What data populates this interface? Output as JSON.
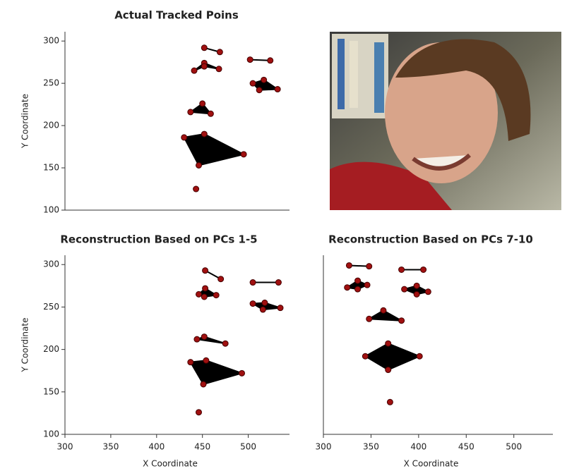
{
  "chart_data": [
    {
      "type": "scatter",
      "title": "Actual Tracked Poins",
      "ylabel": "Y Coordinate",
      "xlim": [
        300,
        545
      ],
      "ylim": [
        100,
        311
      ],
      "yticks": [
        100,
        150,
        200,
        250,
        300
      ],
      "color": "#a01010",
      "shape_color": "#000000",
      "series": [
        {
          "shape": "line",
          "x": [
            452,
            469
          ],
          "y": [
            292,
            287
          ]
        },
        {
          "shape": "polygon",
          "x": [
            441,
            452,
            468,
            452
          ],
          "y": [
            265,
            274,
            267,
            270
          ]
        },
        {
          "shape": "line",
          "x": [
            502,
            524
          ],
          "y": [
            278,
            277
          ]
        },
        {
          "shape": "polygon",
          "x": [
            505,
            517,
            532,
            512
          ],
          "y": [
            250,
            254,
            243,
            242
          ]
        },
        {
          "shape": "polygon",
          "x": [
            437,
            450,
            459
          ],
          "y": [
            216,
            226,
            214
          ]
        },
        {
          "shape": "polygon",
          "x": [
            430,
            452,
            495,
            446
          ],
          "y": [
            186,
            190,
            166,
            153
          ]
        },
        {
          "x": [
            443
          ],
          "y": [
            125
          ]
        }
      ]
    },
    {
      "type": "scatter",
      "title": "Reconstruction Based on PCs 1-5",
      "xlabel": "X Coordinate",
      "ylabel": "Y Coordinate",
      "xlim": [
        300,
        545
      ],
      "ylim": [
        100,
        311
      ],
      "xticks": [
        300,
        350,
        400,
        450,
        500
      ],
      "yticks": [
        100,
        150,
        200,
        250,
        300
      ],
      "color": "#a01010",
      "shape_color": "#000000",
      "series": [
        {
          "shape": "line",
          "x": [
            453,
            470
          ],
          "y": [
            293,
            283
          ]
        },
        {
          "shape": "polygon",
          "x": [
            446,
            453,
            465,
            452
          ],
          "y": [
            265,
            272,
            264,
            262
          ]
        },
        {
          "shape": "line",
          "x": [
            505,
            533
          ],
          "y": [
            279,
            279
          ]
        },
        {
          "shape": "polygon",
          "x": [
            505,
            518,
            535,
            516
          ],
          "y": [
            254,
            255,
            249,
            247
          ]
        },
        {
          "shape": "polygon",
          "x": [
            444,
            452,
            475
          ],
          "y": [
            212,
            215,
            207
          ]
        },
        {
          "shape": "polygon",
          "x": [
            437,
            454,
            493,
            451
          ],
          "y": [
            185,
            187,
            172,
            159
          ]
        },
        {
          "x": [
            446
          ],
          "y": [
            126
          ]
        }
      ]
    },
    {
      "type": "scatter",
      "title": "Reconstruction Based on PCs 7-10",
      "xlabel": "X Coordinate",
      "xlim": [
        300,
        541
      ],
      "ylim": [
        100,
        311
      ],
      "xticks": [
        300,
        350,
        400,
        450,
        500
      ],
      "color": "#a01010",
      "shape_color": "#000000",
      "series": [
        {
          "shape": "line",
          "x": [
            327,
            348
          ],
          "y": [
            299,
            298
          ]
        },
        {
          "shape": "polygon",
          "x": [
            325,
            336,
            346,
            336
          ],
          "y": [
            273,
            281,
            276,
            271
          ]
        },
        {
          "shape": "line",
          "x": [
            382,
            405
          ],
          "y": [
            294,
            294
          ]
        },
        {
          "shape": "polygon",
          "x": [
            385,
            398,
            410,
            398
          ],
          "y": [
            271,
            275,
            268,
            265
          ]
        },
        {
          "shape": "polygon",
          "x": [
            348,
            363,
            382
          ],
          "y": [
            236,
            246,
            234
          ]
        },
        {
          "shape": "polygon",
          "x": [
            344,
            368,
            401,
            368
          ],
          "y": [
            192,
            207,
            192,
            176
          ]
        },
        {
          "x": [
            370
          ],
          "y": [
            138
          ]
        }
      ]
    }
  ]
}
